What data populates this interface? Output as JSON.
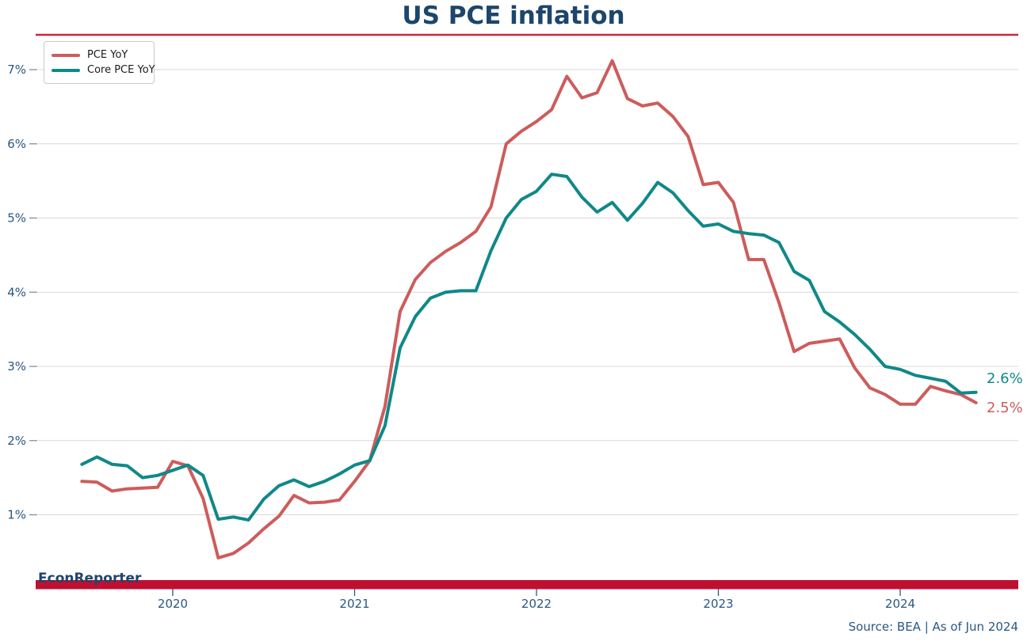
{
  "title": "US PCE inflation",
  "brand": "EconReporter",
  "source_note": "Source: BEA | As of Jun 2024",
  "legend": [
    {
      "label": "PCE YoY",
      "color": "#cd5c5c"
    },
    {
      "label": "Core PCE YoY",
      "color": "#108888"
    }
  ],
  "end_labels": [
    {
      "text": "2.6%",
      "color": "#108888"
    },
    {
      "text": "2.5%",
      "color": "#cd5c5c"
    }
  ],
  "colors": {
    "title": "#1c466b",
    "axis_labels": "#2a5783",
    "gridline": "#d9d9d9",
    "tick_dash": "#7d8fa8",
    "top_rule": "#cf2637",
    "bottom_bar": "#c01031",
    "pce_line": "#cd5c5c",
    "core_line": "#108888"
  },
  "chart_data": {
    "type": "line",
    "title": "US PCE inflation",
    "xlabel": "",
    "ylabel": "",
    "grid": "horizontal",
    "legend_position": "upper-left",
    "ylim": [
      0,
      7.6
    ],
    "y_ticks": [
      1,
      2,
      3,
      4,
      5,
      6,
      7
    ],
    "y_tick_suffix": "%",
    "x_ticks": [
      "2020",
      "2021",
      "2022",
      "2023",
      "2024"
    ],
    "x": [
      "2019-07",
      "2019-08",
      "2019-09",
      "2019-10",
      "2019-11",
      "2019-12",
      "2020-01",
      "2020-02",
      "2020-03",
      "2020-04",
      "2020-05",
      "2020-06",
      "2020-07",
      "2020-08",
      "2020-09",
      "2020-10",
      "2020-11",
      "2020-12",
      "2021-01",
      "2021-02",
      "2021-03",
      "2021-04",
      "2021-05",
      "2021-06",
      "2021-07",
      "2021-08",
      "2021-09",
      "2021-10",
      "2021-11",
      "2021-12",
      "2022-01",
      "2022-02",
      "2022-03",
      "2022-04",
      "2022-05",
      "2022-06",
      "2022-07",
      "2022-08",
      "2022-09",
      "2022-10",
      "2022-11",
      "2022-12",
      "2023-01",
      "2023-02",
      "2023-03",
      "2023-04",
      "2023-05",
      "2023-06",
      "2023-07",
      "2023-08",
      "2023-09",
      "2023-10",
      "2023-11",
      "2023-12",
      "2024-01",
      "2024-02",
      "2024-03",
      "2024-04",
      "2024-05",
      "2024-06"
    ],
    "series": [
      {
        "name": "PCE YoY",
        "color": "#cd5c5c",
        "end_label": "2.5%",
        "values": [
          1.45,
          1.44,
          1.32,
          1.35,
          1.36,
          1.37,
          1.72,
          1.66,
          1.22,
          0.42,
          0.48,
          0.62,
          0.81,
          0.98,
          1.26,
          1.16,
          1.17,
          1.2,
          1.45,
          1.73,
          2.46,
          3.74,
          4.17,
          4.4,
          4.55,
          4.67,
          4.82,
          5.15,
          6.0,
          6.17,
          6.3,
          6.46,
          6.91,
          6.62,
          6.69,
          7.12,
          6.61,
          6.51,
          6.55,
          6.37,
          6.1,
          5.45,
          5.48,
          5.21,
          4.44,
          4.44,
          3.86,
          3.2,
          3.31,
          3.34,
          3.37,
          2.98,
          2.71,
          2.62,
          2.49,
          2.49,
          2.73,
          2.67,
          2.62,
          2.51
        ]
      },
      {
        "name": "Core PCE YoY",
        "color": "#108888",
        "end_label": "2.6%",
        "values": [
          1.68,
          1.78,
          1.68,
          1.66,
          1.5,
          1.53,
          1.6,
          1.67,
          1.53,
          0.94,
          0.97,
          0.93,
          1.21,
          1.39,
          1.47,
          1.38,
          1.45,
          1.55,
          1.67,
          1.73,
          2.2,
          3.25,
          3.67,
          3.92,
          4.0,
          4.02,
          4.02,
          4.56,
          5.0,
          5.25,
          5.36,
          5.59,
          5.56,
          5.28,
          5.08,
          5.21,
          4.97,
          5.2,
          5.48,
          5.34,
          5.1,
          4.89,
          4.92,
          4.82,
          4.79,
          4.77,
          4.67,
          4.28,
          4.16,
          3.74,
          3.6,
          3.43,
          3.23,
          3.0,
          2.96,
          2.88,
          2.84,
          2.8,
          2.64,
          2.65
        ]
      }
    ]
  }
}
